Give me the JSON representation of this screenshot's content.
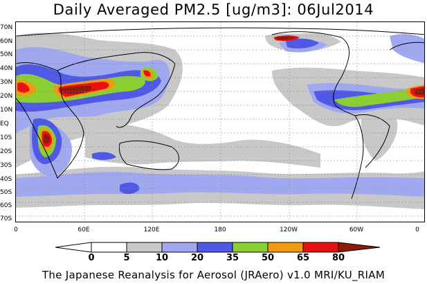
{
  "title": "Daily Averaged PM2.5 [ug/m3]: 06Jul2014",
  "footer": "The Japanese Reanalysis for Aerosol (JRAero) v1.0 MRI/KU_RIAM",
  "lat_labels": [
    "70N",
    "60N",
    "50N",
    "40N",
    "30N",
    "20N",
    "10N",
    "EQ",
    "10S",
    "20S",
    "30S",
    "40S",
    "50S",
    "60S",
    "70S"
  ],
  "lon_labels": [
    "0",
    "60E",
    "120E",
    "180",
    "120W",
    "60W",
    "0"
  ],
  "colorbar": {
    "ticks": [
      "0",
      "5",
      "10",
      "20",
      "35",
      "50",
      "65",
      "80"
    ],
    "colors": [
      "#ffffff",
      "#c8c8c8",
      "#a0a8f0",
      "#5058e6",
      "#8ccf32",
      "#f09a10",
      "#e81010",
      "#8c1a0a"
    ]
  }
}
